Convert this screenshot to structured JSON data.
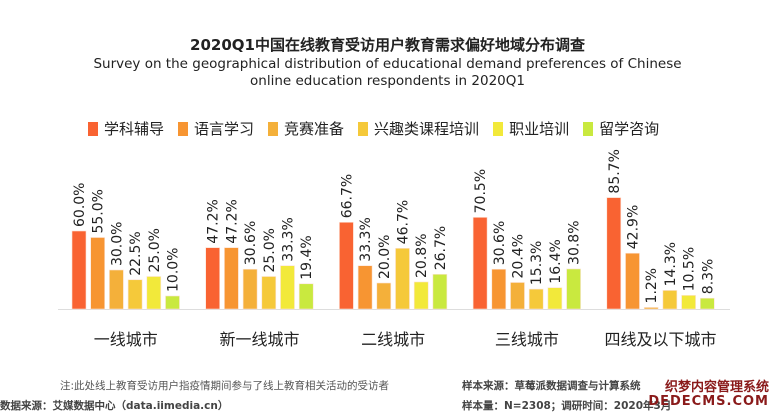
{
  "chart_data": {
    "type": "bar",
    "title": "2020Q1中国在线教育受访用户教育需求偏好地域分布调查",
    "subtitle": [
      "Survey on the geographical distribution of educational demand preferences of Chinese",
      "online education respondents in 2020Q1"
    ],
    "categories": [
      "一线城市",
      "新一线城市",
      "二线城市",
      "三线城市",
      "四线及以下城市"
    ],
    "series": [
      {
        "name": "学科辅导",
        "color": "#f96332",
        "values": [
          60.0,
          47.2,
          66.7,
          70.5,
          85.7
        ]
      },
      {
        "name": "语言学习",
        "color": "#f79532",
        "values": [
          55.0,
          47.2,
          33.3,
          30.6,
          42.9
        ]
      },
      {
        "name": "竞赛准备",
        "color": "#f4b03a",
        "values": [
          30.0,
          30.6,
          20.0,
          20.4,
          1.2
        ]
      },
      {
        "name": "兴趣类课程培训",
        "color": "#f5c93a",
        "values": [
          22.5,
          25.0,
          46.7,
          15.3,
          14.3
        ]
      },
      {
        "name": "职业培训",
        "color": "#f2e93a",
        "values": [
          25.0,
          33.3,
          20.8,
          16.4,
          10.5
        ]
      },
      {
        "name": "留学咨询",
        "color": "#c9e93f",
        "values": [
          10.0,
          19.4,
          26.7,
          30.8,
          8.3
        ]
      }
    ],
    "ylim": [
      0,
      90
    ],
    "grid": false,
    "legend": "top",
    "value_format": "%"
  },
  "footer": {
    "note": "注:此处线上教育受访用户指疫情期间参与了线上教育相关活动的受访者",
    "source": "数据来源：艾媒数据中心（data.iimedia.cn）",
    "sample_source": "样本来源：草莓派数据调查与计算系统",
    "sample_size": "样本量：N=2308；调研时间：2020年3月"
  },
  "watermark": {
    "line1": "织梦内容管理系统",
    "line2": "DEDECMS.COM"
  }
}
